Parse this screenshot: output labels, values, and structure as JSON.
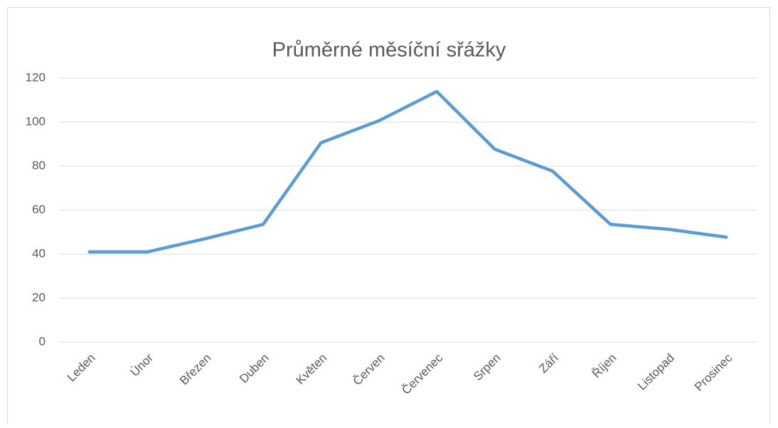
{
  "chart_data": {
    "type": "line",
    "title": "Průměrné měsíční sřážky",
    "categories": [
      "Leden",
      "Únor",
      "Březen",
      "Duben",
      "Květen",
      "Červen",
      "Červenec",
      "Srpen",
      "Září",
      "Říjen",
      "Listopad",
      "Prosinec"
    ],
    "series": [
      {
        "color": "#5b9bd5",
        "values": [
          41,
          41,
          47,
          53.5,
          90.6,
          100.6,
          113.9,
          87.7,
          77.7,
          53.5,
          51.3,
          47.7
        ]
      }
    ],
    "ylim": [
      0,
      120
    ],
    "yticks": [
      0,
      20,
      40,
      60,
      80,
      100,
      120
    ],
    "grid": true
  }
}
